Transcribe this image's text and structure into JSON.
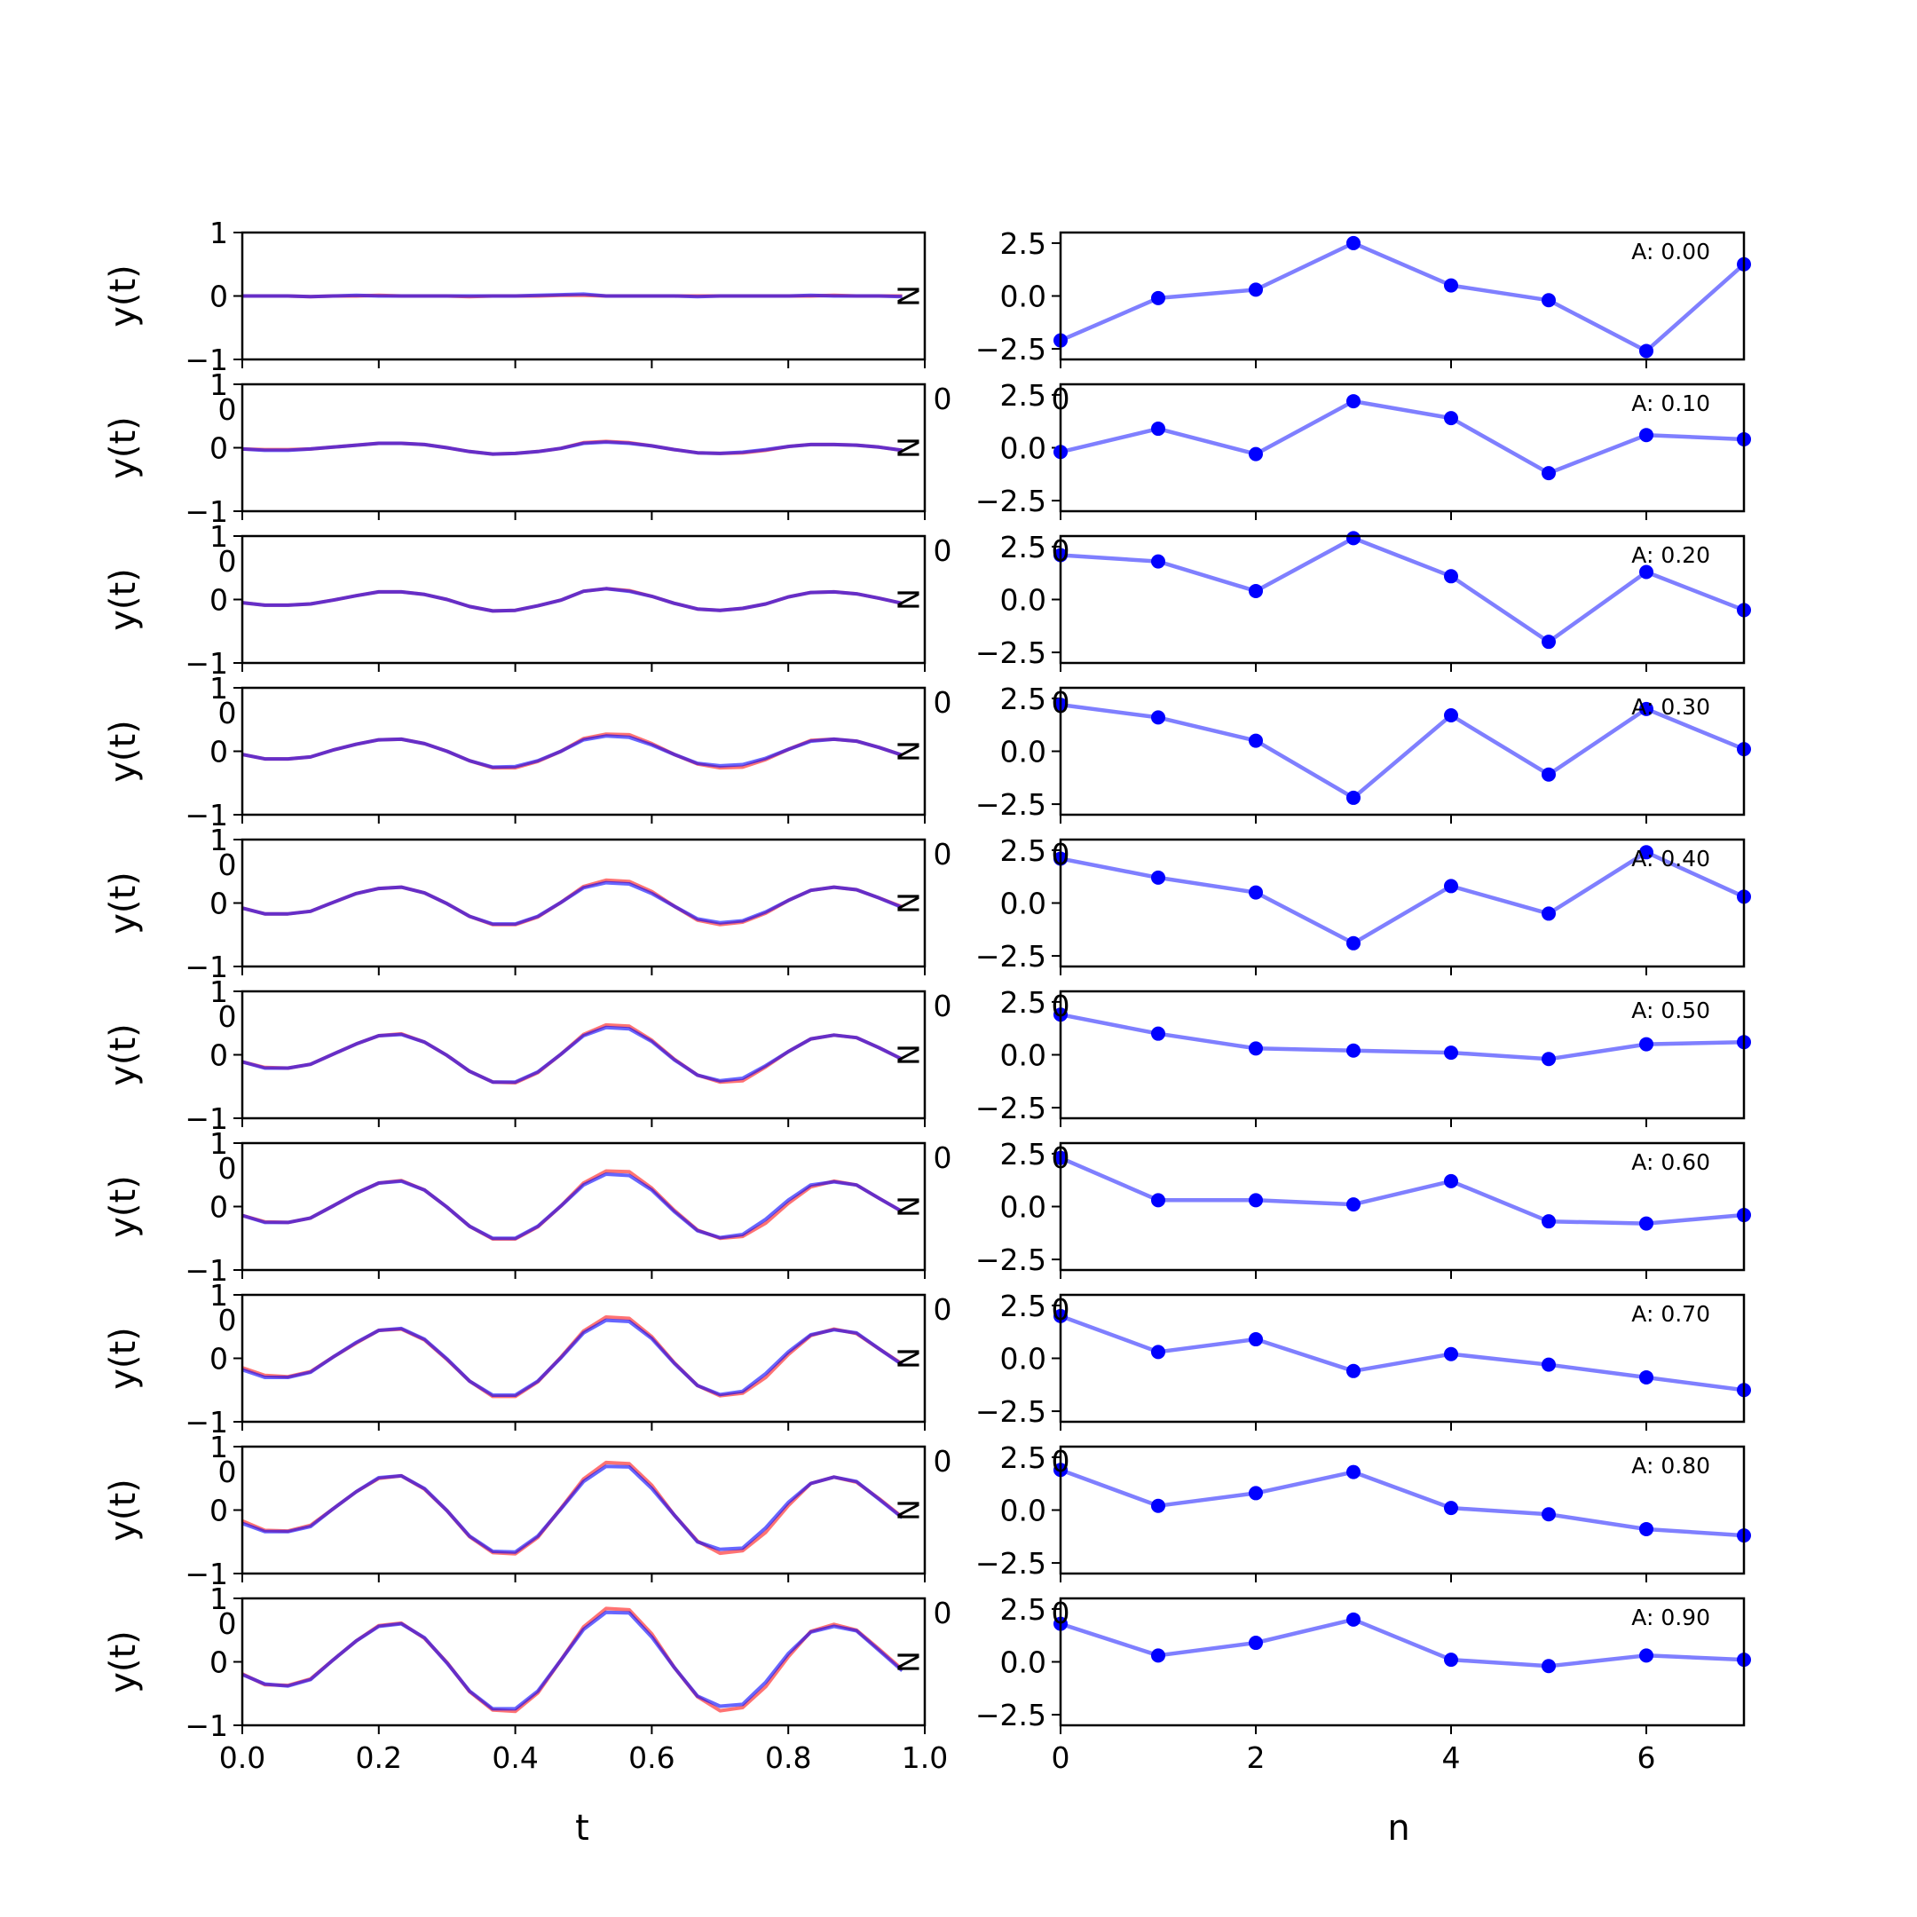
{
  "colors": {
    "left_line_a": "#ff0000",
    "left_line_b": "#0000ff",
    "right_line": "#0000ff",
    "right_marker": "#0000ff"
  },
  "chart_data": [
    {
      "type": "line",
      "column": "left",
      "xlabel": "t",
      "ylabel": "y(t)",
      "xlim": [
        0.0,
        1.0
      ],
      "ylim": [
        -1,
        1
      ],
      "xticks": [
        0.0,
        0.2,
        0.4,
        0.6,
        0.8,
        1.0
      ],
      "xtick_labels": [
        "0.0",
        "0.2",
        "0.4",
        "0.6",
        "0.8",
        "1.0"
      ],
      "yticks": [
        -1,
        0,
        1
      ],
      "ytick_labels": [
        "−1",
        "0",
        "1"
      ],
      "inner_labels": [
        "0",
        "N"
      ],
      "x": [
        0.0,
        0.033,
        0.067,
        0.1,
        0.133,
        0.167,
        0.2,
        0.233,
        0.267,
        0.3,
        0.333,
        0.367,
        0.4,
        0.433,
        0.467,
        0.5,
        0.533,
        0.567,
        0.6,
        0.633,
        0.667,
        0.7,
        0.733,
        0.767,
        0.8,
        0.833,
        0.867,
        0.9,
        0.933,
        0.967
      ],
      "panels": [
        {
          "amplitude": 0.0,
          "series": [
            {
              "values": [
                0.0,
                0.0,
                0.0,
                -0.01,
                0.0,
                0.0,
                0.01,
                0.0,
                0.0,
                0.0,
                -0.01,
                0.0,
                0.0,
                0.0,
                0.01,
                0.01,
                0.0,
                0.0,
                0.0,
                0.0,
                0.0,
                0.0,
                0.0,
                0.0,
                0.0,
                0.0,
                0.01,
                0.0,
                0.0,
                0.0
              ]
            },
            {
              "values": [
                0.0,
                0.0,
                0.0,
                -0.01,
                0.0,
                0.01,
                0.0,
                0.0,
                0.0,
                0.0,
                0.0,
                0.0,
                0.0,
                0.01,
                0.02,
                0.03,
                0.0,
                0.0,
                0.0,
                0.0,
                -0.01,
                0.0,
                0.0,
                0.0,
                0.0,
                0.01,
                0.0,
                0.0,
                0.0,
                -0.01
              ]
            }
          ]
        },
        {
          "amplitude": 0.1,
          "series": [
            {
              "values": [
                -0.02,
                -0.03,
                -0.03,
                -0.02,
                0.01,
                0.04,
                0.07,
                0.07,
                0.05,
                0.0,
                -0.06,
                -0.1,
                -0.09,
                -0.06,
                -0.01,
                0.08,
                0.1,
                0.08,
                0.03,
                -0.03,
                -0.08,
                -0.09,
                -0.08,
                -0.04,
                0.02,
                0.05,
                0.05,
                0.04,
                0.01,
                -0.04
              ]
            },
            {
              "values": [
                -0.02,
                -0.04,
                -0.04,
                -0.02,
                0.01,
                0.04,
                0.07,
                0.07,
                0.05,
                0.0,
                -0.06,
                -0.1,
                -0.09,
                -0.06,
                -0.01,
                0.07,
                0.09,
                0.07,
                0.03,
                -0.03,
                -0.08,
                -0.09,
                -0.07,
                -0.03,
                0.02,
                0.05,
                0.05,
                0.04,
                0.01,
                -0.04
              ]
            }
          ]
        },
        {
          "amplitude": 0.2,
          "series": [
            {
              "values": [
                -0.05,
                -0.09,
                -0.09,
                -0.07,
                -0.01,
                0.06,
                0.12,
                0.12,
                0.08,
                0.0,
                -0.11,
                -0.18,
                -0.17,
                -0.1,
                -0.01,
                0.13,
                0.17,
                0.14,
                0.05,
                -0.06,
                -0.15,
                -0.17,
                -0.14,
                -0.07,
                0.04,
                0.11,
                0.12,
                0.09,
                0.02,
                -0.06
              ]
            },
            {
              "values": [
                -0.05,
                -0.09,
                -0.09,
                -0.07,
                -0.01,
                0.06,
                0.12,
                0.12,
                0.08,
                0.0,
                -0.11,
                -0.18,
                -0.17,
                -0.1,
                -0.01,
                0.13,
                0.17,
                0.13,
                0.05,
                -0.06,
                -0.15,
                -0.17,
                -0.14,
                -0.07,
                0.04,
                0.11,
                0.12,
                0.09,
                0.02,
                -0.06
              ]
            }
          ]
        },
        {
          "amplitude": 0.3,
          "series": [
            {
              "values": [
                -0.05,
                -0.12,
                -0.12,
                -0.09,
                0.02,
                0.11,
                0.18,
                0.19,
                0.12,
                0.0,
                -0.15,
                -0.26,
                -0.26,
                -0.16,
                0.0,
                0.2,
                0.27,
                0.26,
                0.12,
                -0.05,
                -0.2,
                -0.26,
                -0.25,
                -0.13,
                0.03,
                0.17,
                0.19,
                0.16,
                0.06,
                -0.06
              ]
            },
            {
              "values": [
                -0.05,
                -0.12,
                -0.12,
                -0.09,
                0.02,
                0.11,
                0.18,
                0.19,
                0.12,
                0.0,
                -0.15,
                -0.25,
                -0.24,
                -0.15,
                0.0,
                0.18,
                0.24,
                0.22,
                0.1,
                -0.05,
                -0.19,
                -0.23,
                -0.21,
                -0.11,
                0.03,
                0.16,
                0.19,
                0.16,
                0.06,
                -0.06
              ]
            }
          ]
        },
        {
          "amplitude": 0.4,
          "series": [
            {
              "values": [
                -0.08,
                -0.17,
                -0.17,
                -0.13,
                0.01,
                0.15,
                0.23,
                0.25,
                0.16,
                -0.01,
                -0.21,
                -0.34,
                -0.34,
                -0.22,
                0.01,
                0.26,
                0.36,
                0.34,
                0.18,
                -0.05,
                -0.27,
                -0.34,
                -0.3,
                -0.16,
                0.04,
                0.2,
                0.25,
                0.21,
                0.08,
                -0.06
              ]
            },
            {
              "values": [
                -0.08,
                -0.17,
                -0.17,
                -0.13,
                0.01,
                0.15,
                0.23,
                0.25,
                0.16,
                -0.01,
                -0.21,
                -0.33,
                -0.33,
                -0.21,
                0.01,
                0.24,
                0.32,
                0.3,
                0.15,
                -0.05,
                -0.25,
                -0.31,
                -0.28,
                -0.14,
                0.04,
                0.2,
                0.25,
                0.21,
                0.08,
                -0.07
              ]
            }
          ]
        },
        {
          "amplitude": 0.5,
          "series": [
            {
              "values": [
                -0.11,
                -0.2,
                -0.21,
                -0.15,
                0.01,
                0.17,
                0.3,
                0.33,
                0.2,
                -0.01,
                -0.26,
                -0.43,
                -0.44,
                -0.28,
                0.01,
                0.32,
                0.47,
                0.45,
                0.23,
                -0.07,
                -0.32,
                -0.43,
                -0.41,
                -0.19,
                0.05,
                0.25,
                0.31,
                0.27,
                0.11,
                -0.07
              ]
            },
            {
              "values": [
                -0.11,
                -0.21,
                -0.21,
                -0.15,
                0.01,
                0.17,
                0.3,
                0.32,
                0.2,
                -0.01,
                -0.26,
                -0.43,
                -0.43,
                -0.27,
                0.01,
                0.3,
                0.43,
                0.41,
                0.21,
                -0.08,
                -0.32,
                -0.41,
                -0.37,
                -0.17,
                0.05,
                0.25,
                0.31,
                0.27,
                0.11,
                -0.07
              ]
            }
          ]
        },
        {
          "amplitude": 0.6,
          "series": [
            {
              "values": [
                -0.14,
                -0.24,
                -0.25,
                -0.18,
                0.01,
                0.21,
                0.37,
                0.41,
                0.26,
                -0.01,
                -0.31,
                -0.51,
                -0.51,
                -0.32,
                0.01,
                0.37,
                0.56,
                0.55,
                0.29,
                -0.06,
                -0.37,
                -0.5,
                -0.47,
                -0.26,
                0.05,
                0.31,
                0.4,
                0.34,
                0.13,
                -0.08
              ]
            },
            {
              "values": [
                -0.14,
                -0.25,
                -0.25,
                -0.18,
                0.01,
                0.21,
                0.37,
                0.4,
                0.26,
                -0.01,
                -0.31,
                -0.5,
                -0.5,
                -0.31,
                0.01,
                0.34,
                0.51,
                0.49,
                0.26,
                -0.08,
                -0.38,
                -0.49,
                -0.44,
                -0.2,
                0.1,
                0.34,
                0.39,
                0.34,
                0.13,
                -0.08
              ]
            }
          ]
        },
        {
          "amplitude": 0.7,
          "series": [
            {
              "values": [
                -0.15,
                -0.27,
                -0.29,
                -0.21,
                0.02,
                0.24,
                0.44,
                0.46,
                0.29,
                -0.02,
                -0.36,
                -0.6,
                -0.6,
                -0.37,
                0.02,
                0.43,
                0.65,
                0.63,
                0.34,
                -0.07,
                -0.43,
                -0.59,
                -0.55,
                -0.3,
                0.06,
                0.36,
                0.46,
                0.39,
                0.15,
                -0.09
              ]
            },
            {
              "values": [
                -0.18,
                -0.3,
                -0.3,
                -0.22,
                0.02,
                0.25,
                0.44,
                0.47,
                0.3,
                -0.01,
                -0.36,
                -0.58,
                -0.58,
                -0.36,
                0.01,
                0.4,
                0.6,
                0.58,
                0.31,
                -0.08,
                -0.43,
                -0.57,
                -0.52,
                -0.24,
                0.1,
                0.37,
                0.45,
                0.4,
                0.15,
                -0.1
              ]
            }
          ]
        },
        {
          "amplitude": 0.8,
          "series": [
            {
              "values": [
                -0.17,
                -0.32,
                -0.33,
                -0.24,
                0.02,
                0.29,
                0.5,
                0.54,
                0.33,
                -0.01,
                -0.42,
                -0.67,
                -0.69,
                -0.43,
                0.03,
                0.49,
                0.75,
                0.73,
                0.39,
                -0.08,
                -0.49,
                -0.68,
                -0.64,
                -0.35,
                0.07,
                0.42,
                0.52,
                0.44,
                0.18,
                -0.11
              ]
            },
            {
              "values": [
                -0.21,
                -0.34,
                -0.34,
                -0.26,
                0.02,
                0.29,
                0.51,
                0.54,
                0.34,
                -0.01,
                -0.41,
                -0.65,
                -0.66,
                -0.41,
                0.02,
                0.45,
                0.69,
                0.68,
                0.34,
                -0.08,
                -0.5,
                -0.62,
                -0.6,
                -0.28,
                0.12,
                0.42,
                0.52,
                0.45,
                0.17,
                -0.12
              ]
            }
          ]
        },
        {
          "amplitude": 0.9,
          "series": [
            {
              "values": [
                -0.19,
                -0.36,
                -0.37,
                -0.27,
                0.03,
                0.33,
                0.57,
                0.61,
                0.37,
                -0.01,
                -0.47,
                -0.76,
                -0.78,
                -0.49,
                0.03,
                0.55,
                0.84,
                0.82,
                0.44,
                -0.09,
                -0.55,
                -0.77,
                -0.72,
                -0.39,
                0.08,
                0.48,
                0.59,
                0.5,
                0.2,
                -0.12
              ]
            },
            {
              "values": [
                -0.2,
                -0.35,
                -0.38,
                -0.28,
                0.03,
                0.33,
                0.56,
                0.6,
                0.38,
                -0.02,
                -0.46,
                -0.74,
                -0.74,
                -0.46,
                0.03,
                0.51,
                0.78,
                0.77,
                0.39,
                -0.09,
                -0.54,
                -0.7,
                -0.67,
                -0.32,
                0.13,
                0.47,
                0.56,
                0.49,
                0.18,
                -0.14
              ]
            }
          ]
        }
      ]
    },
    {
      "type": "line",
      "column": "right",
      "xlabel": "n",
      "ylabel": "",
      "xlim": [
        0,
        7
      ],
      "ylim": [
        -3.0,
        3.0
      ],
      "xticks": [
        0,
        2,
        4,
        6
      ],
      "xtick_labels": [
        "0",
        "2",
        "4",
        "6"
      ],
      "yticks": [
        2.5,
        0.0,
        -2.5
      ],
      "ytick_labels": [
        "2.5",
        "0.0",
        "−2.5"
      ],
      "inner_labels": [
        "0",
        "0"
      ],
      "x": [
        0,
        1,
        2,
        3,
        4,
        5,
        6,
        7
      ],
      "panels": [
        {
          "annotation": "A: 0.00",
          "values": [
            -2.1,
            -0.1,
            0.3,
            2.5,
            0.5,
            -0.2,
            -2.6,
            1.5
          ]
        },
        {
          "annotation": "A: 0.10",
          "values": [
            -0.2,
            0.9,
            -0.3,
            2.2,
            1.4,
            -1.2,
            0.6,
            0.4
          ]
        },
        {
          "annotation": "A: 0.20",
          "values": [
            2.1,
            1.8,
            0.4,
            2.9,
            1.1,
            -2.0,
            1.3,
            -0.5
          ]
        },
        {
          "annotation": "A: 0.30",
          "values": [
            2.2,
            1.6,
            0.5,
            -2.2,
            1.7,
            -1.1,
            2.0,
            0.1
          ]
        },
        {
          "annotation": "A: 0.40",
          "values": [
            2.1,
            1.2,
            0.5,
            -1.9,
            0.8,
            -0.5,
            2.4,
            0.3
          ]
        },
        {
          "annotation": "A: 0.50",
          "values": [
            1.9,
            1.0,
            0.3,
            0.2,
            0.1,
            -0.2,
            0.5,
            0.6
          ]
        },
        {
          "annotation": "A: 0.60",
          "values": [
            2.3,
            0.3,
            0.3,
            0.1,
            1.2,
            -0.7,
            -0.8,
            -0.4
          ]
        },
        {
          "annotation": "A: 0.70",
          "values": [
            2.0,
            0.3,
            0.9,
            -0.6,
            0.2,
            -0.3,
            -0.9,
            -1.5
          ]
        },
        {
          "annotation": "A: 0.80",
          "values": [
            1.9,
            0.2,
            0.8,
            1.8,
            0.1,
            -0.2,
            -0.9,
            -1.2
          ]
        },
        {
          "annotation": "A: 0.90",
          "values": [
            1.8,
            0.3,
            0.9,
            2.0,
            0.1,
            -0.2,
            0.3,
            0.1
          ]
        }
      ]
    }
  ]
}
